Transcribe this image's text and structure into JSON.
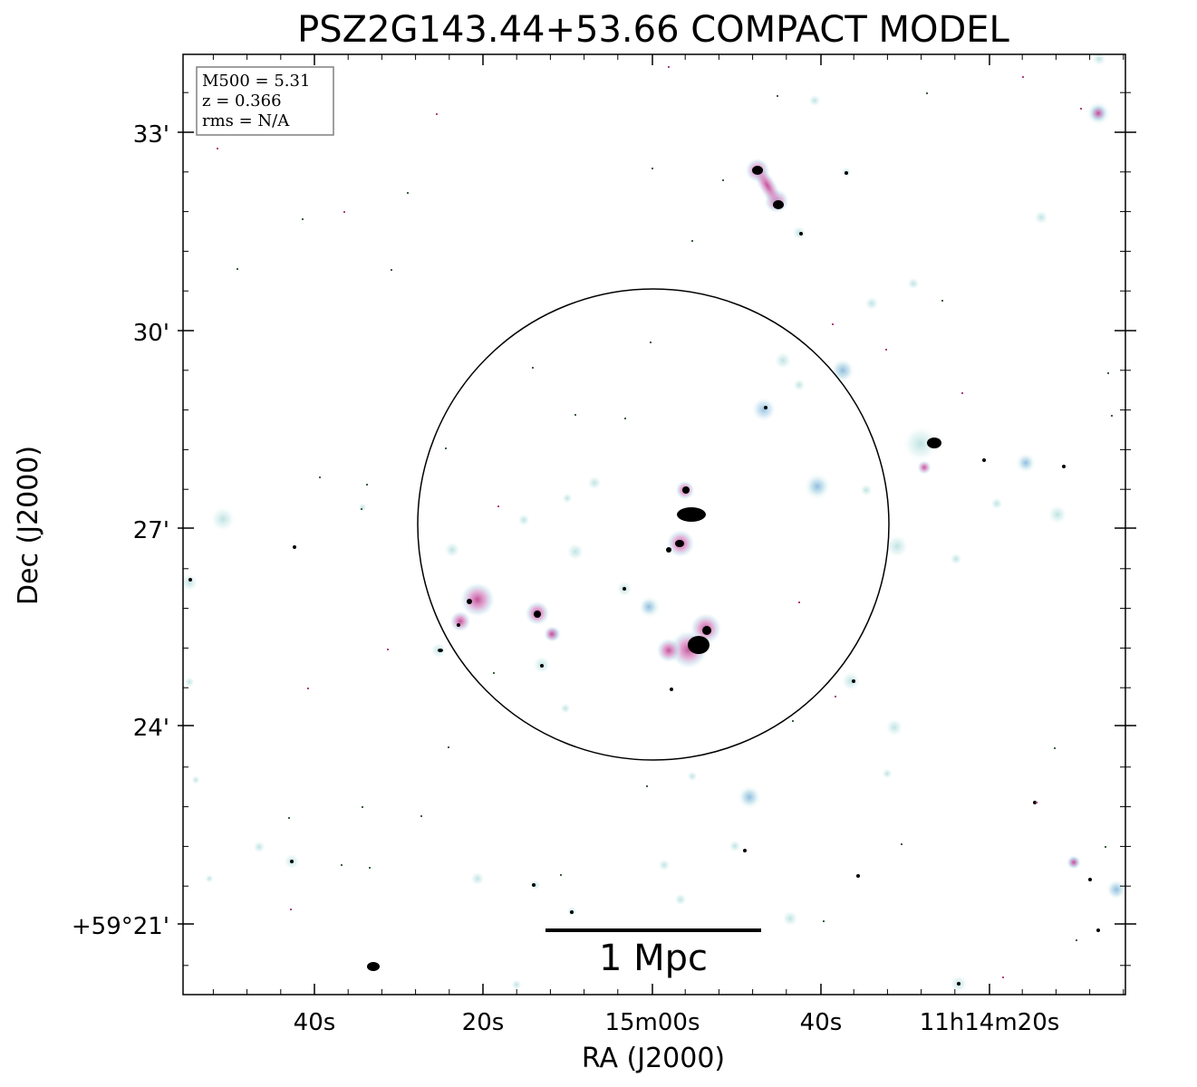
{
  "title": "PSZ2G143.44+53.66 COMPACT MODEL",
  "xlabel": "RA (J2000)",
  "ylabel": "Dec (J2000)",
  "x_ticks": [
    {
      "label": "40s",
      "ra_offset_s": -40
    },
    {
      "label": "20s",
      "ra_offset_s": -20
    },
    {
      "label": "15m00s",
      "ra_offset_s": 0
    },
    {
      "label": "40s",
      "ra_offset_s": 20
    },
    {
      "label": "11h14m20s",
      "ra_offset_s": 40
    }
  ],
  "y_ticks": [
    {
      "label": "33'",
      "dec_arcmin": 33
    },
    {
      "label": "30'",
      "dec_arcmin": 30
    },
    {
      "label": "27'",
      "dec_arcmin": 27
    },
    {
      "label": "24'",
      "dec_arcmin": 24
    },
    {
      "label": "+59°21'",
      "dec_arcmin": 21
    }
  ],
  "info_box": {
    "m500": "M500 = 5.31",
    "z": "z = 0.366",
    "rms": "rms = N/A"
  },
  "scalebar_label": "1 Mpc",
  "colors": {
    "halo": "#a8d8d8",
    "halo_blue": "#9cc8e8",
    "pink": "#d060a0",
    "core": "#000000",
    "frame": "#000000",
    "infobox_border": "#808080"
  }
}
